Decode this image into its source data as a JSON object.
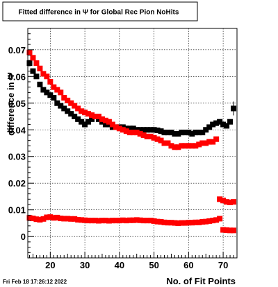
{
  "chart_data": {
    "type": "scatter",
    "title": "Fitted difference in  Ψ  for Global Rec Pion NoHits",
    "xlabel": "No. of Fit Points",
    "ylabel": "difference in  Ψ",
    "xlim": [
      13.5,
      74
    ],
    "ylim": [
      -0.008,
      0.078
    ],
    "x_ticks": [
      20,
      30,
      40,
      50,
      60,
      70
    ],
    "y_ticks": [
      0,
      0.01,
      0.02,
      0.03,
      0.04,
      0.05,
      0.06,
      0.07
    ],
    "y_tick_labels": [
      "0",
      "0.01",
      "0.02",
      "0.03",
      "0.04",
      "0.05",
      "0.06",
      "0.07"
    ],
    "grid": true,
    "colors": {
      "black_series": "#000000",
      "red_series": "#ff0000"
    },
    "series": [
      {
        "color": "black",
        "x": [
          14,
          15,
          16,
          17,
          18,
          19,
          20,
          21,
          22,
          23,
          24,
          25,
          26,
          27,
          28,
          29,
          30,
          31,
          32,
          33,
          34,
          35,
          36,
          37,
          38,
          39,
          40,
          41,
          42,
          43,
          44,
          45,
          46,
          47,
          48,
          49,
          50,
          51,
          52,
          53,
          54,
          55,
          56,
          57,
          58,
          59,
          60,
          61,
          62,
          63,
          64,
          65,
          66,
          67,
          68,
          69,
          70,
          71,
          72,
          73
        ],
        "y": [
          0.065,
          0.062,
          0.06,
          0.057,
          0.055,
          0.054,
          0.053,
          0.052,
          0.05,
          0.049,
          0.048,
          0.047,
          0.046,
          0.045,
          0.044,
          0.043,
          0.042,
          0.043,
          0.044,
          0.045,
          0.044,
          0.043,
          0.042,
          0.042,
          0.041,
          0.041,
          0.041,
          0.041,
          0.0405,
          0.0405,
          0.0405,
          0.04,
          0.04,
          0.04,
          0.04,
          0.04,
          0.04,
          0.0398,
          0.0395,
          0.039,
          0.039,
          0.039,
          0.0385,
          0.0385,
          0.039,
          0.039,
          0.039,
          0.0385,
          0.039,
          0.039,
          0.039,
          0.04,
          0.041,
          0.042,
          0.0425,
          0.043,
          0.042,
          0.0415,
          0.043,
          0.048
        ]
      },
      {
        "color": "red",
        "x": [
          14,
          15,
          16,
          17,
          18,
          19,
          20,
          21,
          22,
          23,
          24,
          25,
          26,
          27,
          28,
          29,
          30,
          31,
          32,
          33,
          34,
          35,
          36,
          37,
          38,
          39,
          40,
          41,
          42,
          43,
          44,
          45,
          46,
          47,
          48,
          49,
          50,
          51,
          52,
          53,
          54,
          55,
          56,
          57,
          58,
          59,
          60,
          61,
          62,
          63,
          64,
          65,
          66,
          67,
          68,
          69,
          70,
          71,
          72,
          73
        ],
        "y": [
          0.069,
          0.067,
          0.065,
          0.063,
          0.061,
          0.06,
          0.058,
          0.056,
          0.055,
          0.054,
          0.052,
          0.051,
          0.05,
          0.049,
          0.048,
          0.047,
          0.0465,
          0.046,
          0.0455,
          0.045,
          0.045,
          0.044,
          0.0435,
          0.043,
          0.042,
          0.041,
          0.0405,
          0.04,
          0.0395,
          0.039,
          0.039,
          0.039,
          0.0385,
          0.038,
          0.0375,
          0.0375,
          0.037,
          0.0365,
          0.036,
          0.035,
          0.035,
          0.034,
          0.0335,
          0.0335,
          0.034,
          0.034,
          0.034,
          0.034,
          0.034,
          0.0345,
          0.035,
          0.035,
          0.0355,
          0.0355,
          0.0365,
          0.014,
          0.0135,
          0.013,
          0.0128,
          0.013
        ]
      },
      {
        "color": "red",
        "x": [
          14,
          15,
          16,
          17,
          18,
          19,
          20,
          21,
          22,
          23,
          24,
          25,
          26,
          27,
          28,
          29,
          30,
          31,
          32,
          33,
          34,
          35,
          36,
          37,
          38,
          39,
          40,
          41,
          42,
          43,
          44,
          45,
          46,
          47,
          48,
          49,
          50,
          51,
          52,
          53,
          54,
          55,
          56,
          57,
          58,
          59,
          60,
          61,
          62,
          63,
          64,
          65,
          66,
          67,
          68,
          69,
          70,
          71,
          72,
          73
        ],
        "y": [
          0.007,
          0.0068,
          0.0065,
          0.0063,
          0.0066,
          0.0072,
          0.0073,
          0.007,
          0.0071,
          0.0068,
          0.0067,
          0.0067,
          0.0066,
          0.0066,
          0.0063,
          0.0062,
          0.0061,
          0.006,
          0.006,
          0.006,
          0.0059,
          0.006,
          0.006,
          0.0059,
          0.006,
          0.006,
          0.006,
          0.0061,
          0.006,
          0.0061,
          0.0061,
          0.0062,
          0.0061,
          0.006,
          0.006,
          0.006,
          0.0058,
          0.0056,
          0.0055,
          0.0053,
          0.0052,
          0.0052,
          0.0051,
          0.005,
          0.0051,
          0.0051,
          0.0052,
          0.0052,
          0.0053,
          0.0053,
          0.0055,
          0.0056,
          0.0058,
          0.006,
          0.0062,
          0.0067,
          0.0025,
          0.0024,
          0.0023,
          0.0023
        ]
      }
    ],
    "footer": "Fri Feb 18 17:26:12 2022"
  }
}
